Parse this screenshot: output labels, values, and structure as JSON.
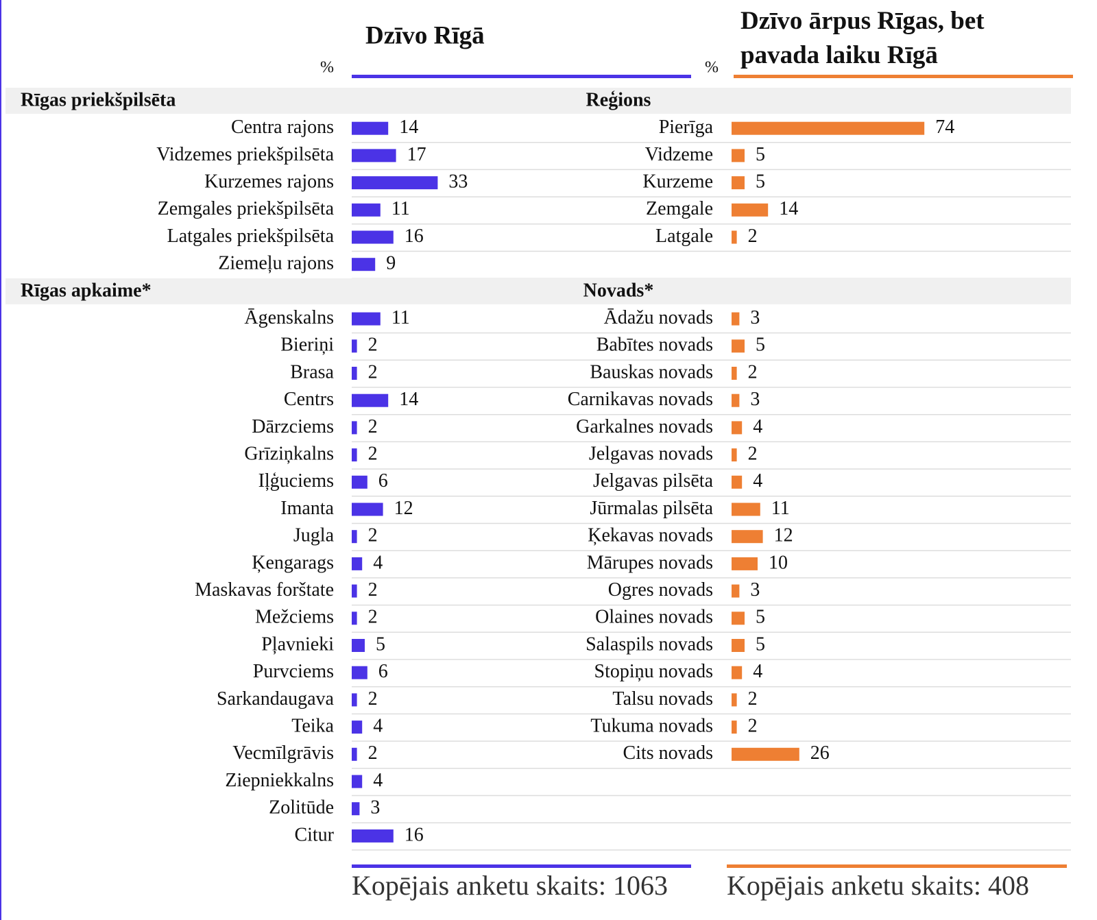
{
  "chart_data": [
    {
      "type": "bar",
      "title": "Dzīvo Rīgā",
      "unit": "%",
      "color": "#4b33e6",
      "sections": [
        {
          "name": "Rīgas priekšpilsēta",
          "categories": [
            "Centra rajons",
            "Vidzemes priekšpilsēta",
            "Kurzemes rajons",
            "Zemgales priekšpilsēta",
            "Latgales priekšpilsēta",
            "Ziemeļu rajons"
          ],
          "values": [
            14,
            17,
            33,
            11,
            16,
            9
          ]
        },
        {
          "name": "Rīgas apkaime*",
          "categories": [
            "Āgenskalns",
            "Bieriņi",
            "Brasa",
            "Centrs",
            "Dārzciems",
            "Grīziņkalns",
            "Iļģuciems",
            "Imanta",
            "Jugla",
            "Ķengarags",
            "Maskavas forštate",
            "Mežciems",
            "Pļavnieki",
            "Purvciems",
            "Sarkandaugava",
            "Teika",
            "Vecmīlgrāvis",
            "Ziepniekkalns",
            "Zolitūde",
            "Citur"
          ],
          "values": [
            11,
            2,
            2,
            14,
            2,
            2,
            6,
            12,
            2,
            4,
            2,
            2,
            5,
            6,
            2,
            4,
            2,
            4,
            3,
            16
          ]
        }
      ],
      "footer": "Kopējais anketu skaits: 1063"
    },
    {
      "type": "bar",
      "title": "Dzīvo ārpus Rīgas, bet pavada laiku Rīgā",
      "unit": "%",
      "color": "#ee7f33",
      "sections": [
        {
          "name": "Reģions",
          "categories": [
            "Pierīga",
            "Vidzeme",
            "Kurzeme",
            "Zemgale",
            "Latgale"
          ],
          "values": [
            74,
            5,
            5,
            14,
            2
          ]
        },
        {
          "name": "Novads*",
          "categories": [
            "Ādažu novads",
            "Babītes novads",
            "Bauskas novads",
            "Carnikavas novads",
            "Garkalnes novads",
            "Jelgavas novads",
            "Jelgavas pilsēta",
            "Jūrmalas pilsēta",
            "Ķekavas novads",
            "Mārupes novads",
            "Ogres novads",
            "Olaines novads",
            "Salaspils novads",
            "Stopiņu novads",
            "Talsu novads",
            "Tukuma novads",
            "Cits novads"
          ],
          "values": [
            3,
            5,
            2,
            3,
            4,
            2,
            4,
            11,
            12,
            10,
            3,
            5,
            5,
            4,
            2,
            2,
            26
          ]
        }
      ],
      "footer": "Kopējais anketu skaits: 408"
    }
  ]
}
